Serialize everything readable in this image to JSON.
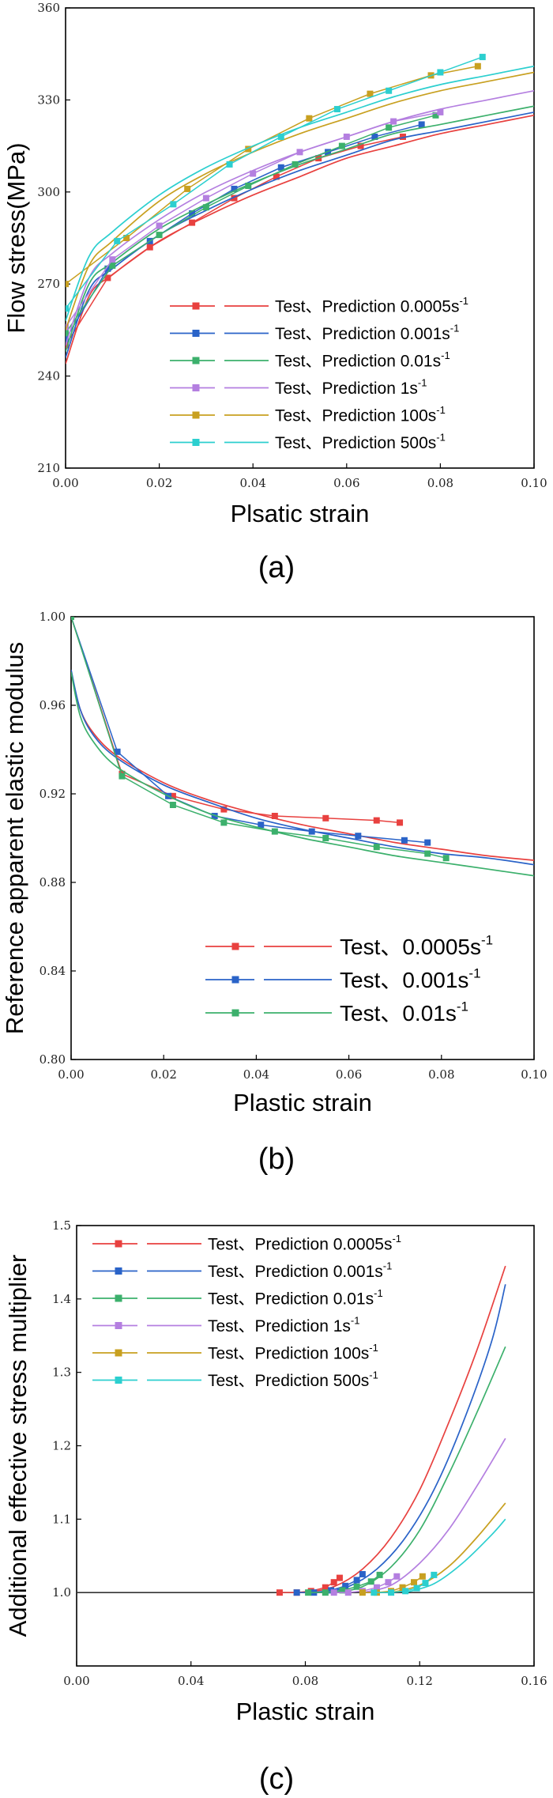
{
  "chart_data": [
    {
      "type": "line",
      "panel_label": "(a)",
      "xlabel": "Plsatic strain",
      "ylabel": "Flow stress(MPa)",
      "xlim": [
        0,
        0.1
      ],
      "ylim": [
        210,
        360
      ],
      "xticks": [
        "0.00",
        "0.02",
        "0.04",
        "0.06",
        "0.08",
        "0.10"
      ],
      "yticks": [
        "210",
        "240",
        "270",
        "300",
        "330",
        "360"
      ],
      "legend": [
        {
          "label": "Test、Prediction 0.0005s",
          "sup": "-1"
        },
        {
          "label": "Test、Prediction 0.001s",
          "sup": "-1"
        },
        {
          "label": "Test、Prediction 0.01s",
          "sup": "-1"
        },
        {
          "label": "Test、Prediction 1s",
          "sup": "-1"
        },
        {
          "label": "Test、Prediction 100s",
          "sup": "-1"
        },
        {
          "label": "Test、Prediction 500s",
          "sup": "-1"
        }
      ],
      "series": [
        {
          "name": "0.0005s-1",
          "color": "#e8413f",
          "test_x": [
            0,
            0.009,
            0.018,
            0.027,
            0.036,
            0.045,
            0.054,
            0.063,
            0.072
          ],
          "test_y": [
            250,
            272,
            282,
            290,
            298,
            305,
            311,
            315,
            318
          ],
          "pred_x": [
            0,
            0.005,
            0.01,
            0.02,
            0.03,
            0.04,
            0.05,
            0.06,
            0.07,
            0.08,
            0.09,
            0.1
          ],
          "pred_y": [
            244,
            266,
            273,
            284,
            292,
            299,
            305,
            311,
            315,
            319,
            322,
            325
          ]
        },
        {
          "name": "0.001s-1",
          "color": "#2a63c8",
          "test_x": [
            0,
            0.009,
            0.018,
            0.027,
            0.036,
            0.046,
            0.056,
            0.066,
            0.076
          ],
          "test_y": [
            252,
            275,
            284,
            293,
            301,
            308,
            313,
            318,
            322
          ],
          "pred_x": [
            0,
            0.005,
            0.01,
            0.02,
            0.03,
            0.04,
            0.05,
            0.06,
            0.07,
            0.08,
            0.09,
            0.1
          ],
          "pred_y": [
            246,
            268,
            275,
            286,
            294,
            301,
            307,
            312,
            317,
            320,
            323,
            326
          ]
        },
        {
          "name": "0.01s-1",
          "color": "#3cb06c",
          "test_x": [
            0,
            0.01,
            0.02,
            0.03,
            0.039,
            0.049,
            0.059,
            0.069,
            0.079
          ],
          "test_y": [
            254,
            276,
            286,
            295,
            302,
            309,
            315,
            321,
            325
          ],
          "pred_x": [
            0,
            0.005,
            0.01,
            0.02,
            0.03,
            0.04,
            0.05,
            0.06,
            0.07,
            0.08,
            0.09,
            0.1
          ],
          "pred_y": [
            248,
            270,
            277,
            288,
            296,
            303,
            309,
            314,
            319,
            322,
            325,
            328
          ]
        },
        {
          "name": "1s-1",
          "color": "#b47fe0",
          "test_x": [
            0,
            0.01,
            0.02,
            0.03,
            0.04,
            0.05,
            0.06,
            0.07,
            0.08
          ],
          "test_y": [
            256,
            278,
            289,
            298,
            306,
            313,
            318,
            323,
            326
          ],
          "pred_x": [
            0,
            0.005,
            0.01,
            0.02,
            0.03,
            0.04,
            0.05,
            0.06,
            0.07,
            0.08,
            0.09,
            0.1
          ],
          "pred_y": [
            250,
            272,
            280,
            291,
            300,
            307,
            313,
            318,
            323,
            327,
            330,
            333
          ]
        },
        {
          "name": "100s-1",
          "color": "#c8a020",
          "test_x": [
            0,
            0.013,
            0.026,
            0.039,
            0.052,
            0.065,
            0.078,
            0.088
          ],
          "test_y": [
            270,
            285,
            301,
            314,
            324,
            332,
            338,
            341
          ],
          "pred_x": [
            0,
            0.005,
            0.01,
            0.02,
            0.03,
            0.04,
            0.05,
            0.06,
            0.07,
            0.08,
            0.09,
            0.1
          ],
          "pred_y": [
            255,
            276,
            284,
            297,
            306,
            313,
            319,
            324,
            329,
            333,
            336,
            339
          ]
        },
        {
          "name": "500s-1",
          "color": "#2ccfcf",
          "test_x": [
            0,
            0.011,
            0.023,
            0.035,
            0.046,
            0.058,
            0.069,
            0.08,
            0.089
          ],
          "test_y": [
            262,
            284,
            296,
            309,
            318,
            327,
            333,
            339,
            344
          ],
          "pred_x": [
            0,
            0.005,
            0.01,
            0.02,
            0.03,
            0.04,
            0.05,
            0.06,
            0.07,
            0.08,
            0.09,
            0.1
          ],
          "pred_y": [
            258,
            279,
            287,
            299,
            308,
            315,
            321,
            326,
            331,
            335,
            338,
            341
          ]
        }
      ]
    },
    {
      "type": "line",
      "panel_label": "(b)",
      "xlabel": "Plastic strain",
      "ylabel": "Reference apparent elastic modulus",
      "xlim": [
        0,
        0.1
      ],
      "ylim": [
        0.8,
        1.0
      ],
      "xticks": [
        "0.00",
        "0.02",
        "0.04",
        "0.06",
        "0.08",
        "0.10"
      ],
      "yticks": [
        "0.80",
        "0.84",
        "0.88",
        "0.92",
        "0.96",
        "1.00"
      ],
      "legend": [
        {
          "label": "Test、0.0005s",
          "sup": "-1"
        },
        {
          "label": "Test、0.001s",
          "sup": "-1"
        },
        {
          "label": "Test、0.01s",
          "sup": "-1"
        }
      ],
      "series": [
        {
          "name": "0.0005s-1",
          "color": "#e8413f",
          "test_x": [
            0,
            0.011,
            0.022,
            0.033,
            0.044,
            0.055,
            0.066,
            0.071
          ],
          "test_y": [
            1.0,
            0.929,
            0.919,
            0.913,
            0.91,
            0.909,
            0.908,
            0.907
          ],
          "pred_x": [
            0,
            0.002,
            0.005,
            0.01,
            0.02,
            0.03,
            0.04,
            0.05,
            0.06,
            0.07,
            0.08,
            0.09,
            0.1
          ],
          "pred_y": [
            0.975,
            0.958,
            0.947,
            0.937,
            0.925,
            0.917,
            0.911,
            0.906,
            0.902,
            0.898,
            0.895,
            0.892,
            0.89
          ]
        },
        {
          "name": "0.001s-1",
          "color": "#2a63c8",
          "test_x": [
            0,
            0.01,
            0.021,
            0.031,
            0.041,
            0.052,
            0.062,
            0.072,
            0.077
          ],
          "test_y": [
            1.0,
            0.939,
            0.919,
            0.91,
            0.906,
            0.903,
            0.901,
            0.899,
            0.898
          ],
          "pred_x": [
            0,
            0.002,
            0.005,
            0.01,
            0.02,
            0.03,
            0.04,
            0.05,
            0.06,
            0.07,
            0.08,
            0.09,
            0.1
          ],
          "pred_y": [
            0.976,
            0.958,
            0.946,
            0.936,
            0.924,
            0.916,
            0.909,
            0.904,
            0.9,
            0.896,
            0.893,
            0.891,
            0.888
          ]
        },
        {
          "name": "0.01s-1",
          "color": "#3cb06c",
          "test_x": [
            0,
            0.011,
            0.022,
            0.033,
            0.044,
            0.055,
            0.066,
            0.077,
            0.081
          ],
          "test_y": [
            1.0,
            0.928,
            0.915,
            0.907,
            0.903,
            0.9,
            0.896,
            0.893,
            0.891
          ],
          "pred_x": [
            0,
            0.002,
            0.005,
            0.01,
            0.02,
            0.03,
            0.04,
            0.05,
            0.06,
            0.07,
            0.08,
            0.09,
            0.1
          ],
          "pred_y": [
            0.975,
            0.955,
            0.943,
            0.932,
            0.92,
            0.911,
            0.905,
            0.9,
            0.896,
            0.892,
            0.889,
            0.886,
            0.883
          ]
        }
      ]
    },
    {
      "type": "line",
      "panel_label": "(c)",
      "xlabel": "Plastic strain",
      "ylabel": "Additional effective stress multiplier",
      "xlim": [
        0,
        0.16
      ],
      "ylim": [
        0.9,
        1.5
      ],
      "xticks": [
        "0.00",
        "0.04",
        "0.08",
        "0.12",
        "0.16"
      ],
      "yticks": [
        "1.0",
        "1.1",
        "1.2",
        "1.3",
        "1.4",
        "1.5"
      ],
      "baseline_y": 1.0,
      "legend": [
        {
          "label": "Test、Prediction 0.0005s",
          "sup": "-1"
        },
        {
          "label": "Test、Prediction 0.001s",
          "sup": "-1"
        },
        {
          "label": "Test、Prediction 0.01s",
          "sup": "-1"
        },
        {
          "label": "Test、Prediction 1s",
          "sup": "-1"
        },
        {
          "label": "Test、Prediction 100s",
          "sup": "-1"
        },
        {
          "label": "Test、Prediction 500s",
          "sup": "-1"
        }
      ],
      "series": [
        {
          "name": "0.0005s-1",
          "color": "#e8413f",
          "test_x": [
            0.071,
            0.077,
            0.082,
            0.087,
            0.09,
            0.092
          ],
          "test_y": [
            1.0,
            1.0,
            1.002,
            1.007,
            1.014,
            1.02
          ],
          "pred_x": [
            0.08,
            0.09,
            0.1,
            0.11,
            0.12,
            0.13,
            0.14,
            0.15
          ],
          "pred_y": [
            1.0,
            1.008,
            1.032,
            1.075,
            1.14,
            1.23,
            1.33,
            1.445
          ]
        },
        {
          "name": "0.001s-1",
          "color": "#2a63c8",
          "test_x": [
            0.077,
            0.083,
            0.089,
            0.094,
            0.098,
            0.1
          ],
          "test_y": [
            1.0,
            1.0,
            1.003,
            1.009,
            1.017,
            1.025
          ],
          "pred_x": [
            0.085,
            0.095,
            0.105,
            0.115,
            0.125,
            0.135,
            0.145,
            0.15
          ],
          "pred_y": [
            1.0,
            1.008,
            1.032,
            1.075,
            1.14,
            1.23,
            1.34,
            1.42
          ]
        },
        {
          "name": "0.01s-1",
          "color": "#3cb06c",
          "test_x": [
            0.081,
            0.087,
            0.093,
            0.098,
            0.103,
            0.106
          ],
          "test_y": [
            1.0,
            1.0,
            1.003,
            1.008,
            1.015,
            1.024
          ],
          "pred_x": [
            0.09,
            0.1,
            0.11,
            0.12,
            0.13,
            0.14,
            0.15
          ],
          "pred_y": [
            1.0,
            1.008,
            1.035,
            1.085,
            1.16,
            1.245,
            1.335
          ]
        },
        {
          "name": "1s-1",
          "color": "#b47fe0",
          "test_x": [
            0.09,
            0.095,
            0.1,
            0.105,
            0.109,
            0.112
          ],
          "test_y": [
            1.0,
            1.0,
            1.002,
            1.007,
            1.014,
            1.022
          ],
          "pred_x": [
            0.1,
            0.11,
            0.12,
            0.13,
            0.14,
            0.15
          ],
          "pred_y": [
            1.0,
            1.01,
            1.04,
            1.085,
            1.145,
            1.21
          ]
        },
        {
          "name": "100s-1",
          "color": "#c8a020",
          "test_x": [
            0.1,
            0.105,
            0.11,
            0.114,
            0.118,
            0.121
          ],
          "test_y": [
            1.0,
            1.0,
            1.002,
            1.007,
            1.014,
            1.022
          ],
          "pred_x": [
            0.11,
            0.12,
            0.13,
            0.14,
            0.15
          ],
          "pred_y": [
            1.0,
            1.01,
            1.035,
            1.075,
            1.122
          ]
        },
        {
          "name": "500s-1",
          "color": "#2ccfcf",
          "test_x": [
            0.104,
            0.11,
            0.115,
            0.119,
            0.122,
            0.125
          ],
          "test_y": [
            1.0,
            1.0,
            1.002,
            1.006,
            1.013,
            1.024
          ],
          "pred_x": [
            0.115,
            0.125,
            0.135,
            0.145,
            0.15
          ],
          "pred_y": [
            1.0,
            1.012,
            1.04,
            1.078,
            1.1
          ]
        }
      ]
    }
  ]
}
